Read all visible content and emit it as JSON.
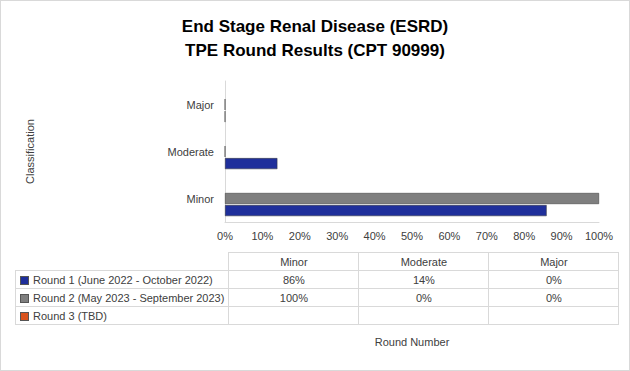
{
  "chart_data": {
    "type": "bar",
    "orientation": "horizontal",
    "title": "End Stage Renal Disease (ESRD)\nTPE Round Results (CPT 90999)",
    "y_label": "Classification",
    "x_label": "Round Number",
    "categories": [
      "Minor",
      "Moderate",
      "Major"
    ],
    "series": [
      {
        "name": "Round 1 (June 2022 - October 2022)",
        "color": "#1f2f9b",
        "values": [
          86,
          14,
          0
        ],
        "value_labels": [
          "86%",
          "14%",
          "0%"
        ]
      },
      {
        "name": "Round 2 (May 2023 - September 2023)",
        "color": "#7f7f7f",
        "values": [
          100,
          0,
          0
        ],
        "value_labels": [
          "100%",
          "0%",
          "0%"
        ]
      },
      {
        "name": "Round 3 (TBD)",
        "color": "#d9531e",
        "values": [
          null,
          null,
          null
        ],
        "value_labels": [
          null,
          null,
          null
        ]
      }
    ],
    "xlim": [
      0,
      100
    ],
    "xticks": [
      {
        "value": 0,
        "label": "0%"
      },
      {
        "value": 10,
        "label": "10%"
      },
      {
        "value": 20,
        "label": "20%"
      },
      {
        "value": 30,
        "label": "30%"
      },
      {
        "value": 40,
        "label": "40%"
      },
      {
        "value": 50,
        "label": "50%"
      },
      {
        "value": 60,
        "label": "60%"
      },
      {
        "value": 70,
        "label": "70%"
      },
      {
        "value": 80,
        "label": "80%"
      },
      {
        "value": 90,
        "label": "90%"
      },
      {
        "value": 100,
        "label": "100%"
      }
    ],
    "grid": false
  }
}
